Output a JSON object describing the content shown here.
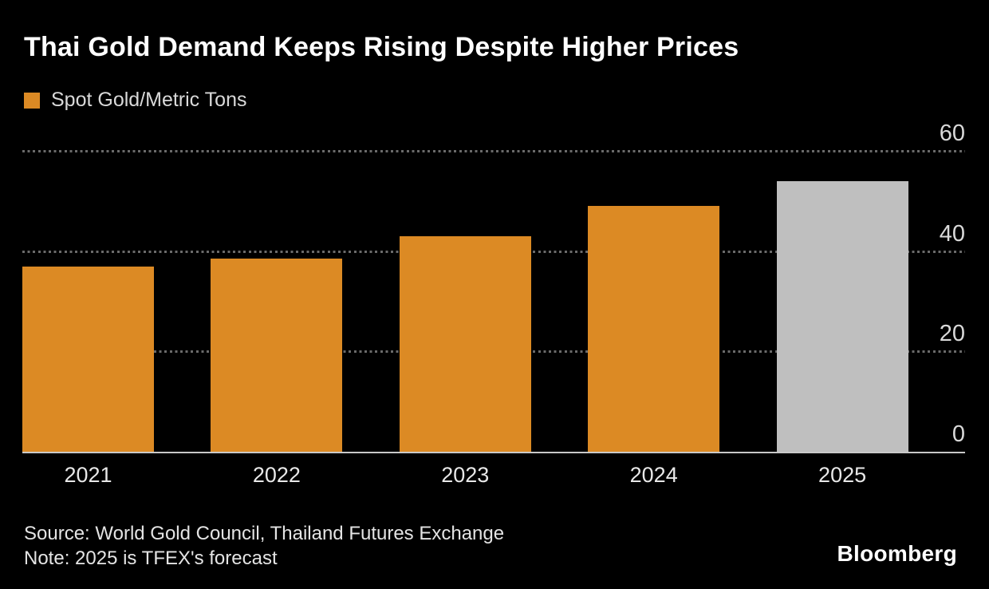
{
  "title": "Thai Gold Demand Keeps Rising Despite Higher Prices",
  "legend": {
    "label": "Spot Gold/Metric Tons",
    "swatch_color": "#DC8A24"
  },
  "chart_data": {
    "type": "bar",
    "title": "Thai Gold Demand Keeps Rising Despite Higher Prices",
    "series_label": "Spot Gold/Metric Tons",
    "categories": [
      "2021",
      "2022",
      "2023",
      "2024",
      "2025"
    ],
    "values": [
      37,
      38.5,
      43,
      49,
      54
    ],
    "units": "metric tons",
    "bar_colors": [
      "#DC8A24",
      "#DC8A24",
      "#DC8A24",
      "#DC8A24",
      "#BFBFBF"
    ],
    "forecast_category": "2025",
    "xlabel": "",
    "ylabel": "",
    "ylim": [
      0,
      60
    ],
    "yticks": [
      0,
      20,
      40,
      60
    ],
    "ytick_side": "right",
    "grid": "horizontal-dotted",
    "legend_position": "top-left",
    "background": "#000000"
  },
  "footer": {
    "source": "Source: World Gold Council, Thailand Futures Exchange",
    "note": "Note: 2025 is TFEX's forecast",
    "brand": "Bloomberg"
  },
  "colors": {
    "background": "#000000",
    "bar_orange": "#DC8A24",
    "bar_forecast_gray": "#BFBFBF",
    "title_text": "#ffffff",
    "axis_text": "#d9d9d9",
    "gridline": "#6a6a6a",
    "baseline": "#c8c8c8"
  }
}
